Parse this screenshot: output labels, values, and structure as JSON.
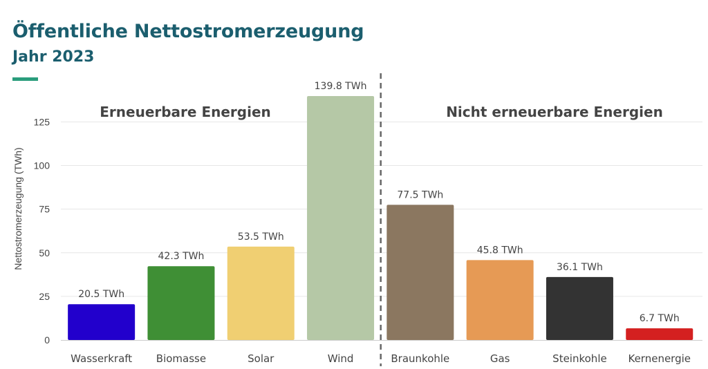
{
  "header": {
    "title": "Öffentliche Nettostromerzeugung",
    "subtitle": "Jahr 2023"
  },
  "colors": {
    "title": "#1b5e6e",
    "accent": "#2a9d7c",
    "grid": "#e6e6e6",
    "divider": "#666666"
  },
  "chart_data": {
    "type": "bar",
    "title": "Öffentliche Nettostromerzeugung",
    "subtitle": "Jahr 2023",
    "xlabel": "",
    "ylabel": "Nettostromerzeugung (TWh)",
    "ylim": [
      0,
      140
    ],
    "yticks": [
      0,
      25,
      50,
      75,
      100,
      125
    ],
    "grid": true,
    "categories": [
      "Wasserkraft",
      "Biomasse",
      "Solar",
      "Wind",
      "Braunkohle",
      "Gas",
      "Steinkohle",
      "Kernenergie"
    ],
    "values": [
      20.5,
      42.3,
      53.5,
      139.8,
      77.5,
      45.8,
      36.1,
      6.7
    ],
    "value_labels": [
      "20.5 TWh",
      "42.3 TWh",
      "53.5 TWh",
      "139.8 TWh",
      "77.5 TWh",
      "45.8 TWh",
      "36.1 TWh",
      "6.7 TWh"
    ],
    "bar_colors": [
      "#2200cc",
      "#3f8f35",
      "#f0cf72",
      "#b5c8a6",
      "#8b7760",
      "#e69a55",
      "#333333",
      "#d42020"
    ],
    "groups": [
      {
        "label": "Erneuerbare Energien",
        "categories": [
          "Wasserkraft",
          "Biomasse",
          "Solar",
          "Wind"
        ]
      },
      {
        "label": "Nicht erneuerbare Energien",
        "categories": [
          "Braunkohle",
          "Gas",
          "Steinkohle",
          "Kernenergie"
        ]
      }
    ]
  }
}
